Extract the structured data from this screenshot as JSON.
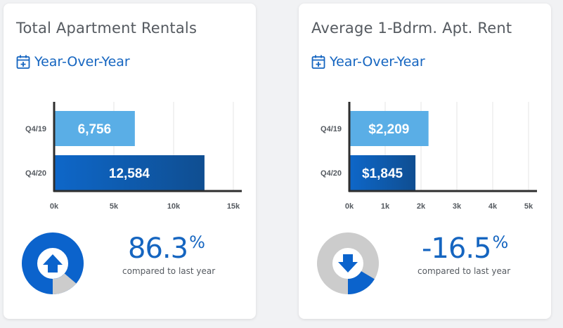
{
  "colors": {
    "bar_light": "#5aaee6",
    "bar_dark_start": "#0e67c9",
    "bar_dark_end": "#0f4e91",
    "accent": "#1565c0",
    "donut_blue": "#0b63cc",
    "donut_grey": "#cccccc"
  },
  "period_icon": "calendar-plus-icon",
  "cards": [
    {
      "title": "Total Apartment Rentals",
      "period_label": "Year-Over-Year",
      "change_value": "86.3",
      "change_symbol": "%",
      "change_fraction": 0.863,
      "change_direction": "up",
      "comparison_label": "compared to last year"
    },
    {
      "title": "Average 1-Bdrm. Apt. Rent",
      "period_label": "Year-Over-Year",
      "change_value": "-16.5",
      "change_symbol": "%",
      "change_fraction": 0.165,
      "change_direction": "down",
      "comparison_label": "compared to last year"
    }
  ],
  "chart_data": [
    {
      "type": "bar",
      "orientation": "horizontal",
      "categories": [
        "Q4/19",
        "Q4/20"
      ],
      "values": [
        6756,
        12584
      ],
      "value_labels": [
        "6,756",
        "12,584"
      ],
      "xlim": [
        0,
        15000
      ],
      "xticks": [
        0,
        5000,
        10000,
        15000
      ],
      "xtick_labels": [
        "0k",
        "5k",
        "10k",
        "15k"
      ],
      "grid": true
    },
    {
      "type": "bar",
      "orientation": "horizontal",
      "categories": [
        "Q4/19",
        "Q4/20"
      ],
      "values": [
        2209,
        1845
      ],
      "value_labels": [
        "$2,209",
        "$1,845"
      ],
      "xlim": [
        0,
        5000
      ],
      "xticks": [
        0,
        1000,
        2000,
        3000,
        4000,
        5000
      ],
      "xtick_labels": [
        "0k",
        "1k",
        "2k",
        "3k",
        "4k",
        "5k"
      ],
      "grid": true
    }
  ]
}
